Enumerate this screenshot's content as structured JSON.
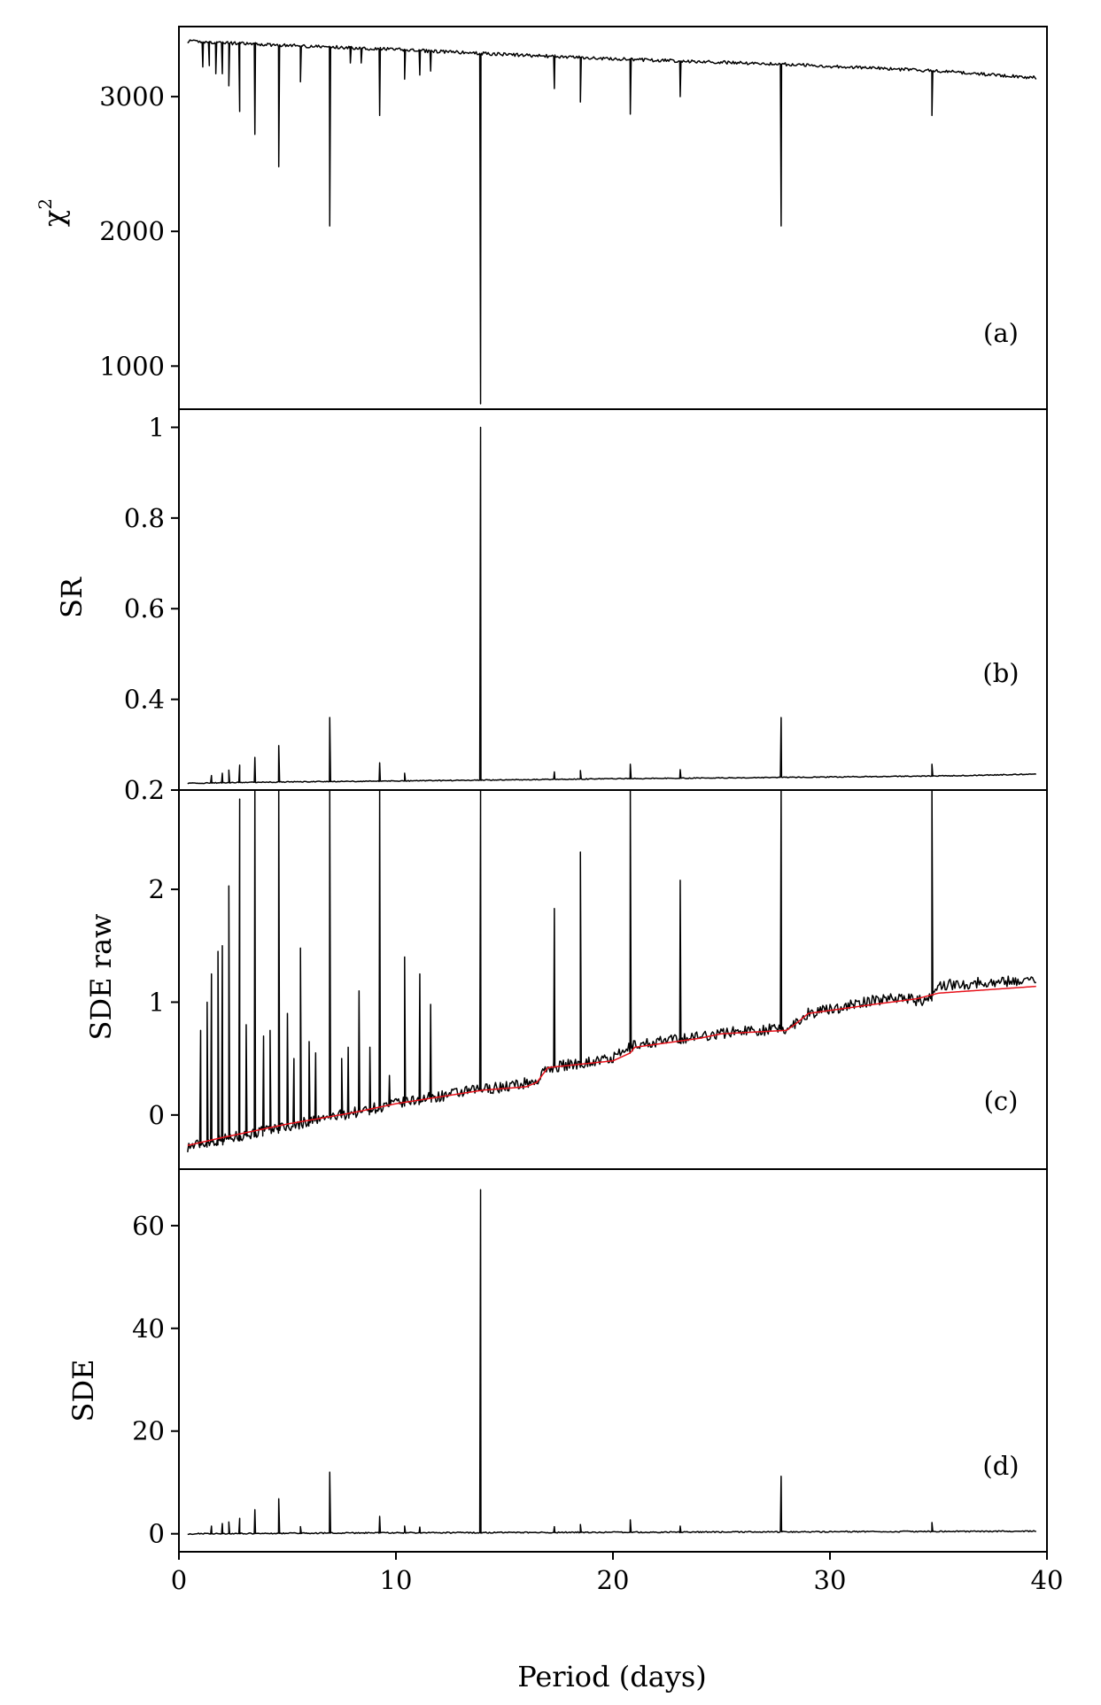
{
  "chart_data": [
    {
      "id": "a",
      "type": "line",
      "panel_label": "(a)",
      "ylabel": "χ",
      "ylabel_superscript": "2",
      "ylim": [
        680,
        3520
      ],
      "yticks": [
        1000,
        2000,
        3000
      ],
      "xlim": [
        0,
        40
      ],
      "baseline": {
        "x": [
          0.4,
          5,
          10,
          14,
          20,
          28,
          35,
          39.5
        ],
        "y": [
          3410,
          3380,
          3350,
          3320,
          3280,
          3240,
          3190,
          3140
        ]
      },
      "noise": 12,
      "spikes": [
        {
          "x": 1.1,
          "y": 3220
        },
        {
          "x": 1.4,
          "y": 3230
        },
        {
          "x": 1.7,
          "y": 3170
        },
        {
          "x": 2.0,
          "y": 3170
        },
        {
          "x": 2.3,
          "y": 3080
        },
        {
          "x": 2.8,
          "y": 2890
        },
        {
          "x": 3.5,
          "y": 2720
        },
        {
          "x": 4.6,
          "y": 2480
        },
        {
          "x": 5.6,
          "y": 3110
        },
        {
          "x": 6.95,
          "y": 2040
        },
        {
          "x": 7.9,
          "y": 3250
        },
        {
          "x": 8.4,
          "y": 3250
        },
        {
          "x": 9.25,
          "y": 2860
        },
        {
          "x": 10.4,
          "y": 3130
        },
        {
          "x": 11.1,
          "y": 3160
        },
        {
          "x": 11.6,
          "y": 3190
        },
        {
          "x": 13.9,
          "y": 720
        },
        {
          "x": 17.3,
          "y": 3060
        },
        {
          "x": 18.5,
          "y": 2960
        },
        {
          "x": 20.8,
          "y": 2870
        },
        {
          "x": 23.1,
          "y": 3000
        },
        {
          "x": 27.75,
          "y": 2040
        },
        {
          "x": 34.7,
          "y": 2860
        }
      ]
    },
    {
      "id": "b",
      "type": "line",
      "panel_label": "(b)",
      "ylabel": "SR",
      "ylim": [
        0.2,
        1.04
      ],
      "yticks": [
        0.2,
        0.4,
        0.6,
        0.8,
        1.0
      ],
      "xlim": [
        0,
        40
      ],
      "baseline": {
        "x": [
          0.4,
          5,
          10,
          14,
          20,
          28,
          35,
          39.5
        ],
        "y": [
          0.215,
          0.218,
          0.22,
          0.222,
          0.225,
          0.228,
          0.231,
          0.235
        ]
      },
      "noise": 0.001,
      "spikes": [
        {
          "x": 1.5,
          "y": 0.232
        },
        {
          "x": 2.0,
          "y": 0.237
        },
        {
          "x": 2.3,
          "y": 0.244
        },
        {
          "x": 2.8,
          "y": 0.255
        },
        {
          "x": 3.5,
          "y": 0.272
        },
        {
          "x": 4.6,
          "y": 0.298
        },
        {
          "x": 6.95,
          "y": 0.36
        },
        {
          "x": 9.25,
          "y": 0.26
        },
        {
          "x": 10.4,
          "y": 0.237
        },
        {
          "x": 13.9,
          "y": 1.0
        },
        {
          "x": 17.3,
          "y": 0.24
        },
        {
          "x": 18.5,
          "y": 0.243
        },
        {
          "x": 20.8,
          "y": 0.257
        },
        {
          "x": 23.1,
          "y": 0.245
        },
        {
          "x": 27.75,
          "y": 0.36
        },
        {
          "x": 34.7,
          "y": 0.257
        }
      ]
    },
    {
      "id": "c",
      "type": "line",
      "panel_label": "(c)",
      "ylabel": "SDE raw",
      "ylim": [
        -0.48,
        2.88
      ],
      "yticks": [
        0,
        1,
        2
      ],
      "xlim": [
        0,
        40
      ],
      "series": [
        {
          "color": "#000000",
          "baseline": {
            "x": [
              0.4,
              5,
              10,
              14,
              15,
              16.5,
              17,
              20,
              21,
              26,
              28,
              29,
              33,
              34.5,
              35,
              39.5
            ],
            "y": [
              -0.28,
              -0.1,
              0.1,
              0.23,
              0.25,
              0.3,
              0.42,
              0.5,
              0.62,
              0.75,
              0.76,
              0.9,
              1.05,
              1.0,
              1.15,
              1.2
            ]
          },
          "noise": 0.05,
          "spikes": [
            {
              "x": 1.0,
              "y": 0.75
            },
            {
              "x": 1.3,
              "y": 1.0
            },
            {
              "x": 1.5,
              "y": 1.25
            },
            {
              "x": 1.8,
              "y": 1.45
            },
            {
              "x": 2.0,
              "y": 1.5
            },
            {
              "x": 2.3,
              "y": 2.03
            },
            {
              "x": 2.8,
              "y": 2.8
            },
            {
              "x": 3.1,
              "y": 0.8
            },
            {
              "x": 3.5,
              "y": 2.88
            },
            {
              "x": 3.9,
              "y": 0.7
            },
            {
              "x": 4.2,
              "y": 0.75
            },
            {
              "x": 4.6,
              "y": 2.88
            },
            {
              "x": 5.0,
              "y": 0.9
            },
            {
              "x": 5.3,
              "y": 0.5
            },
            {
              "x": 5.6,
              "y": 1.48
            },
            {
              "x": 6.0,
              "y": 0.65
            },
            {
              "x": 6.3,
              "y": 0.55
            },
            {
              "x": 6.95,
              "y": 2.88
            },
            {
              "x": 7.5,
              "y": 0.5
            },
            {
              "x": 7.8,
              "y": 0.6
            },
            {
              "x": 8.3,
              "y": 1.1
            },
            {
              "x": 8.8,
              "y": 0.6
            },
            {
              "x": 9.25,
              "y": 2.88
            },
            {
              "x": 9.7,
              "y": 0.35
            },
            {
              "x": 10.4,
              "y": 1.4
            },
            {
              "x": 11.1,
              "y": 1.25
            },
            {
              "x": 11.6,
              "y": 0.98
            },
            {
              "x": 13.9,
              "y": 2.88
            },
            {
              "x": 17.3,
              "y": 1.83
            },
            {
              "x": 18.5,
              "y": 2.33
            },
            {
              "x": 20.8,
              "y": 2.88
            },
            {
              "x": 23.1,
              "y": 2.08
            },
            {
              "x": 27.75,
              "y": 2.88
            },
            {
              "x": 34.7,
              "y": 2.88
            }
          ]
        },
        {
          "color": "#e8111a",
          "baseline": {
            "x": [
              0.4,
              2,
              5,
              8,
              10,
              12,
              14,
              16,
              16.5,
              17,
              20,
              20.8,
              21,
              24,
              25,
              28,
              28.5,
              29,
              32,
              34,
              35,
              39.5
            ],
            "y": [
              -0.27,
              -0.2,
              -0.08,
              0.02,
              0.1,
              0.16,
              0.22,
              0.25,
              0.29,
              0.42,
              0.48,
              0.55,
              0.6,
              0.68,
              0.72,
              0.75,
              0.82,
              0.9,
              0.98,
              1.03,
              1.08,
              1.14
            ]
          },
          "noise": 0,
          "spikes": []
        }
      ]
    },
    {
      "id": "d",
      "type": "line",
      "panel_label": "(d)",
      "ylabel": "SDE",
      "xlabel": "Period (days)",
      "ylim": [
        -3.5,
        71
      ],
      "yticks": [
        0,
        20,
        40,
        60
      ],
      "xlim": [
        0,
        40
      ],
      "xticks": [
        0,
        10,
        20,
        30,
        40
      ],
      "baseline": {
        "x": [
          0.4,
          10,
          20,
          30,
          39.5
        ],
        "y": [
          0,
          0.2,
          0.3,
          0.4,
          0.5
        ]
      },
      "noise": 0.12,
      "spikes": [
        {
          "x": 1.5,
          "y": 1.5
        },
        {
          "x": 2.0,
          "y": 2.0
        },
        {
          "x": 2.3,
          "y": 2.3
        },
        {
          "x": 2.8,
          "y": 3.0
        },
        {
          "x": 3.5,
          "y": 4.7
        },
        {
          "x": 4.6,
          "y": 6.8
        },
        {
          "x": 5.6,
          "y": 1.4
        },
        {
          "x": 6.95,
          "y": 12.0
        },
        {
          "x": 9.25,
          "y": 3.4
        },
        {
          "x": 10.4,
          "y": 1.5
        },
        {
          "x": 11.1,
          "y": 1.3
        },
        {
          "x": 13.9,
          "y": 67.0
        },
        {
          "x": 17.3,
          "y": 1.4
        },
        {
          "x": 18.5,
          "y": 1.8
        },
        {
          "x": 20.8,
          "y": 2.7
        },
        {
          "x": 23.1,
          "y": 1.5
        },
        {
          "x": 27.75,
          "y": 11.2
        },
        {
          "x": 34.7,
          "y": 2.2
        }
      ]
    }
  ]
}
